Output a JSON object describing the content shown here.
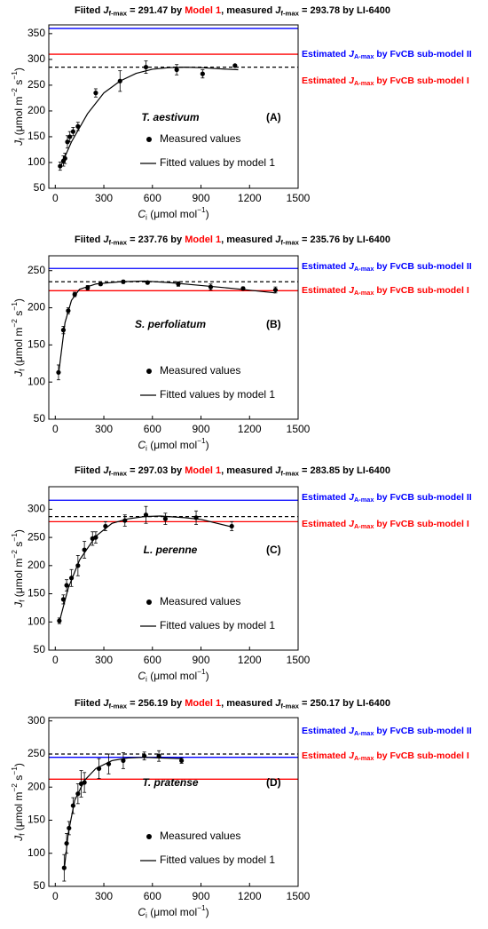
{
  "chart_data": [
    {
      "type": "scatter",
      "title": [
        {
          "text": "Fiited "
        },
        {
          "text": "J",
          "style": "italic"
        },
        {
          "text": "f-max",
          "style": "sub"
        },
        {
          "text": " = 291.47 by "
        },
        {
          "text": "Model 1",
          "color": "#ff0000"
        },
        {
          "text": ", measured "
        },
        {
          "text": "J",
          "style": "italic"
        },
        {
          "text": "f-max",
          "style": "sub"
        },
        {
          "text": " = 293.78 by LI-6400"
        }
      ],
      "x_label": [
        {
          "text": "C",
          "style": "italic"
        },
        {
          "text": "i",
          "style": "sub"
        },
        {
          "text": " (μmol mol"
        },
        {
          "text": "−1",
          "style": "sup"
        },
        {
          "text": ")"
        }
      ],
      "y_label": [
        {
          "text": "J",
          "style": "italic"
        },
        {
          "text": "f",
          "style": "sub"
        },
        {
          "text": " (μmol m"
        },
        {
          "text": "−2",
          "style": "sup"
        },
        {
          "text": " s"
        },
        {
          "text": "−1",
          "style": "sup"
        },
        {
          "text": ")"
        }
      ],
      "species": {
        "text": "T. aestivum",
        "color": "#1a8a8a"
      },
      "panel": "(A)",
      "xlim": [
        -40,
        1500
      ],
      "xticks": [
        0,
        300,
        600,
        900,
        1200,
        1500
      ],
      "ylim": [
        50,
        367
      ],
      "yticks": [
        50,
        100,
        150,
        200,
        250,
        300,
        350
      ],
      "reference_lines": [
        {
          "value": 360,
          "color": "#0000ff",
          "label": [
            {
              "text": "Estimated "
            },
            {
              "text": "J",
              "style": "italic"
            },
            {
              "text": "A-max",
              "style": "sub"
            },
            {
              "text": " by FvCB sub-model II"
            }
          ]
        },
        {
          "value": 310,
          "color": "#ff0000",
          "label": [
            {
              "text": "Estimated "
            },
            {
              "text": "J",
              "style": "italic"
            },
            {
              "text": "A-max",
              "style": "sub"
            },
            {
              "text": " by FvCB sub-model I"
            }
          ]
        },
        {
          "value": 285,
          "color": "#000000",
          "dashed": true
        }
      ],
      "series": [
        {
          "name": "Measured values",
          "kind": "points",
          "color": "#000000",
          "x": [
            30,
            50,
            60,
            75,
            90,
            110,
            140,
            250,
            400,
            560,
            750,
            910,
            1110
          ],
          "values": [
            93,
            103,
            108,
            140,
            150,
            160,
            170,
            235,
            258,
            285,
            280,
            272,
            288
          ],
          "errors": [
            8,
            10,
            10,
            12,
            10,
            8,
            8,
            8,
            20,
            12,
            10,
            8,
            0
          ]
        },
        {
          "name": "Fitted values by model 1",
          "kind": "line",
          "color": "#000000",
          "x": [
            30,
            100,
            200,
            300,
            400,
            500,
            600,
            700,
            800,
            900,
            1000,
            1130
          ],
          "values": [
            90,
            140,
            195,
            235,
            258,
            273,
            281,
            284,
            285,
            284,
            282,
            280
          ]
        }
      ]
    },
    {
      "type": "scatter",
      "title": [
        {
          "text": "Fiited "
        },
        {
          "text": "J",
          "style": "italic"
        },
        {
          "text": "f-max",
          "style": "sub"
        },
        {
          "text": " = 237.76 by "
        },
        {
          "text": "Model 1",
          "color": "#ff0000"
        },
        {
          "text": ", measured "
        },
        {
          "text": "J",
          "style": "italic"
        },
        {
          "text": "f-max",
          "style": "sub"
        },
        {
          "text": " = 235.76 by LI-6400"
        }
      ],
      "x_label": [
        {
          "text": "C",
          "style": "italic"
        },
        {
          "text": "i",
          "style": "sub"
        },
        {
          "text": " (μmol mol"
        },
        {
          "text": "−1",
          "style": "sup"
        },
        {
          "text": ")"
        }
      ],
      "y_label": [
        {
          "text": "J",
          "style": "italic"
        },
        {
          "text": "f",
          "style": "sub"
        },
        {
          "text": " (μmol m"
        },
        {
          "text": "−2",
          "style": "sup"
        },
        {
          "text": " s"
        },
        {
          "text": "−1",
          "style": "sup"
        },
        {
          "text": ")"
        }
      ],
      "species": {
        "text": "S. perfoliatum",
        "color": "#800080"
      },
      "panel": "(B)",
      "xlim": [
        -40,
        1500
      ],
      "xticks": [
        0,
        300,
        600,
        900,
        1200,
        1500
      ],
      "ylim": [
        50,
        270
      ],
      "yticks": [
        50,
        100,
        150,
        200,
        250
      ],
      "reference_lines": [
        {
          "value": 253,
          "color": "#0000ff",
          "label": [
            {
              "text": "Estimated "
            },
            {
              "text": "J",
              "style": "italic"
            },
            {
              "text": "A-max",
              "style": "sub"
            },
            {
              "text": " by FvCB sub-model II"
            }
          ]
        },
        {
          "value": 223,
          "color": "#ff0000",
          "label": [
            {
              "text": "Estimated "
            },
            {
              "text": "J",
              "style": "italic"
            },
            {
              "text": "A-max",
              "style": "sub"
            },
            {
              "text": " by FvCB sub-model I"
            }
          ]
        },
        {
          "value": 235,
          "color": "#000000",
          "dashed": true
        }
      ],
      "series": [
        {
          "name": "Measured values",
          "kind": "points",
          "color": "#000000",
          "x": [
            20,
            50,
            80,
            120,
            200,
            280,
            420,
            570,
            760,
            960,
            1160,
            1360
          ],
          "values": [
            113,
            170,
            196,
            218,
            227,
            232,
            235,
            234,
            232,
            228,
            226,
            224
          ],
          "errors": [
            10,
            5,
            4,
            3,
            3,
            2,
            2,
            2,
            3,
            4,
            2,
            4
          ]
        },
        {
          "name": "Fitted values by model 1",
          "kind": "line",
          "color": "#000000",
          "x": [
            20,
            60,
            100,
            150,
            250,
            400,
            550,
            700,
            900,
            1100,
            1360
          ],
          "values": [
            110,
            180,
            210,
            225,
            232,
            235,
            236,
            234,
            230,
            226,
            220
          ]
        }
      ]
    },
    {
      "type": "scatter",
      "title": [
        {
          "text": "Fiited "
        },
        {
          "text": "J",
          "style": "italic"
        },
        {
          "text": "f-max",
          "style": "sub"
        },
        {
          "text": " = 297.03 by "
        },
        {
          "text": "Model 1",
          "color": "#ff0000"
        },
        {
          "text": ", measured "
        },
        {
          "text": "J",
          "style": "italic"
        },
        {
          "text": "f-max",
          "style": "sub"
        },
        {
          "text": " = 283.85 by LI-6400"
        }
      ],
      "x_label": [
        {
          "text": "C",
          "style": "italic"
        },
        {
          "text": "i",
          "style": "sub"
        },
        {
          "text": " (μmol mol"
        },
        {
          "text": "−1",
          "style": "sup"
        },
        {
          "text": ")"
        }
      ],
      "y_label": [
        {
          "text": "J",
          "style": "italic"
        },
        {
          "text": "f",
          "style": "sub"
        },
        {
          "text": " (μmol m"
        },
        {
          "text": "−2",
          "style": "sup"
        },
        {
          "text": " s"
        },
        {
          "text": "−1",
          "style": "sup"
        },
        {
          "text": ")"
        }
      ],
      "species": {
        "text": "L. perenne",
        "color": "#ff4a1a"
      },
      "panel": "(C)",
      "xlim": [
        -40,
        1500
      ],
      "xticks": [
        0,
        300,
        600,
        900,
        1200,
        1500
      ],
      "ylim": [
        50,
        340
      ],
      "yticks": [
        50,
        100,
        150,
        200,
        250,
        300
      ],
      "reference_lines": [
        {
          "value": 316,
          "color": "#0000ff",
          "label": [
            {
              "text": "Estimated "
            },
            {
              "text": "J",
              "style": "italic"
            },
            {
              "text": "A-max",
              "style": "sub"
            },
            {
              "text": " by FvCB sub-model II"
            }
          ]
        },
        {
          "value": 278,
          "color": "#ff0000",
          "label": [
            {
              "text": "Estimated "
            },
            {
              "text": "J",
              "style": "italic"
            },
            {
              "text": "A-max",
              "style": "sub"
            },
            {
              "text": " by FvCB sub-model I"
            }
          ]
        },
        {
          "value": 287,
          "color": "#000000",
          "dashed": true
        }
      ],
      "series": [
        {
          "name": "Measured values",
          "kind": "points",
          "color": "#000000",
          "x": [
            25,
            50,
            70,
            100,
            140,
            180,
            230,
            250,
            310,
            430,
            560,
            680,
            870,
            1090
          ],
          "values": [
            102,
            140,
            165,
            178,
            200,
            228,
            248,
            250,
            270,
            280,
            290,
            283,
            285,
            270
          ],
          "errors": [
            5,
            8,
            10,
            15,
            18,
            15,
            12,
            10,
            8,
            10,
            15,
            10,
            12,
            8
          ]
        },
        {
          "name": "Fitted values by model 1",
          "kind": "line",
          "color": "#000000",
          "x": [
            25,
            80,
            150,
            250,
            350,
            450,
            550,
            650,
            800,
            900,
            1100
          ],
          "values": [
            100,
            160,
            210,
            252,
            275,
            283,
            287,
            288,
            285,
            282,
            268
          ]
        }
      ]
    },
    {
      "type": "scatter",
      "title": [
        {
          "text": "Fiited "
        },
        {
          "text": "J",
          "style": "italic"
        },
        {
          "text": "f-max",
          "style": "sub"
        },
        {
          "text": " = 256.19 by "
        },
        {
          "text": "Model 1",
          "color": "#ff0000"
        },
        {
          "text": ", measured "
        },
        {
          "text": "J",
          "style": "italic"
        },
        {
          "text": "f-max",
          "style": "sub"
        },
        {
          "text": " = 250.17 by LI-6400"
        }
      ],
      "x_label": [
        {
          "text": "C",
          "style": "italic"
        },
        {
          "text": "i",
          "style": "sub"
        },
        {
          "text": " (μmol mol"
        },
        {
          "text": "−1",
          "style": "sup"
        },
        {
          "text": ")"
        }
      ],
      "y_label": [
        {
          "text": "J",
          "style": "italic"
        },
        {
          "text": "f",
          "style": "sub"
        },
        {
          "text": " (μmol m"
        },
        {
          "text": "−2",
          "style": "sup"
        },
        {
          "text": " s"
        },
        {
          "text": "−1",
          "style": "sup"
        },
        {
          "text": ")"
        }
      ],
      "species": {
        "text": "T. pratense",
        "color": "#808000"
      },
      "panel": "(D)",
      "xlim": [
        -40,
        1500
      ],
      "xticks": [
        0,
        300,
        600,
        900,
        1200,
        1500
      ],
      "ylim": [
        50,
        305
      ],
      "yticks": [
        50,
        100,
        150,
        200,
        250,
        300
      ],
      "reference_lines": [
        {
          "value": 245,
          "color": "#0000ff",
          "label": [
            {
              "text": "Estimated "
            },
            {
              "text": "J",
              "style": "italic"
            },
            {
              "text": "A-max",
              "style": "sub"
            },
            {
              "text": " by FvCB sub-model II"
            }
          ]
        },
        {
          "value": 212,
          "color": "#ff0000",
          "label": [
            {
              "text": "Estimated "
            },
            {
              "text": "J",
              "style": "italic"
            },
            {
              "text": "A-max",
              "style": "sub"
            },
            {
              "text": " by FvCB sub-model I"
            }
          ]
        },
        {
          "value": 250,
          "color": "#000000",
          "dashed": true
        }
      ],
      "series": [
        {
          "name": "Measured values",
          "kind": "points",
          "color": "#000000",
          "x": [
            55,
            70,
            85,
            110,
            140,
            160,
            180,
            270,
            330,
            420,
            550,
            640,
            780
          ],
          "values": [
            78,
            115,
            138,
            172,
            190,
            205,
            207,
            228,
            235,
            240,
            247,
            247,
            240
          ],
          "errors": [
            20,
            15,
            10,
            12,
            15,
            20,
            15,
            15,
            15,
            12,
            6,
            8,
            4
          ]
        },
        {
          "name": "Fitted values by model 1",
          "kind": "line",
          "color": "#000000",
          "x": [
            55,
            80,
            120,
            180,
            250,
            350,
            450,
            550,
            650,
            780
          ],
          "values": [
            75,
            130,
            180,
            210,
            228,
            240,
            244,
            245,
            244,
            243
          ]
        }
      ]
    }
  ]
}
